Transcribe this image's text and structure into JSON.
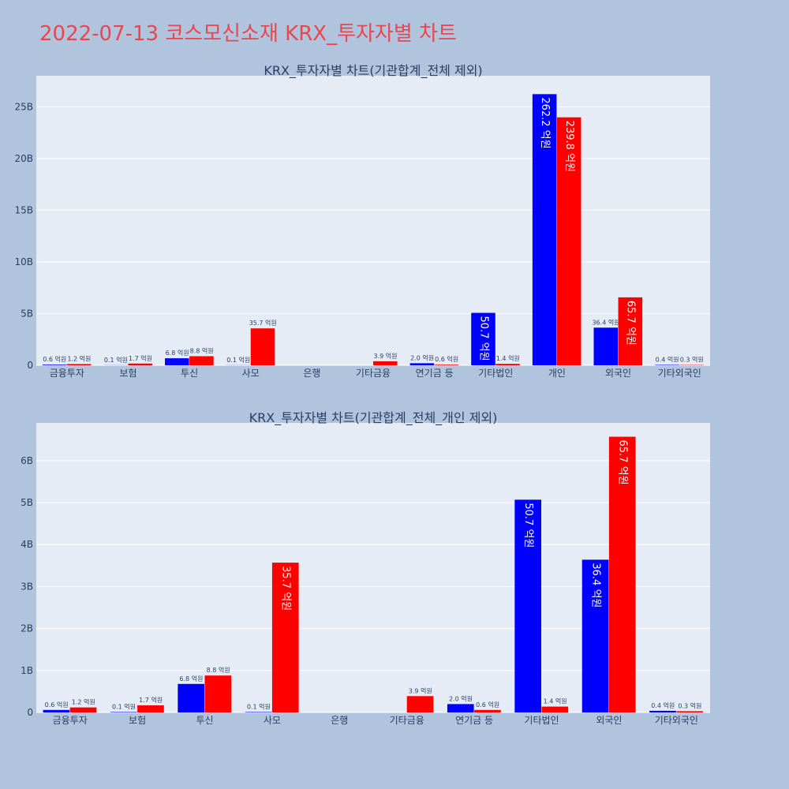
{
  "page": {
    "title": "2022-07-13 코스모신소재 KRX_투자자별 차트"
  },
  "colors": {
    "background": "#b0c4de",
    "plot_bg": "#e5ecf6",
    "grid": "#ffffff",
    "series_blue": "#0000ff",
    "series_red": "#ff0000",
    "title_color": "#e8474f",
    "axis_text": "#2a3f5f"
  },
  "chart_data": [
    {
      "type": "bar",
      "title": "KRX_투자자별 차트(기관합계_전체 제외)",
      "xlabel": "",
      "ylabel": "",
      "ylim": [
        0,
        28000000000
      ],
      "yticks": [
        0,
        5000000000,
        10000000000,
        15000000000,
        20000000000,
        25000000000
      ],
      "ytick_labels": [
        "0",
        "5B",
        "10B",
        "15B",
        "20B",
        "25B"
      ],
      "categories": [
        "금융투자",
        "보험",
        "투신",
        "사모",
        "은행",
        "기타금융",
        "연기금 등",
        "기타법인",
        "개인",
        "외국인",
        "기타외국인"
      ],
      "series": [
        {
          "color": "#0000ff",
          "values": [
            60000000,
            10000000,
            680000000,
            10000000,
            0,
            0,
            200000000,
            5070000000,
            26220000000,
            3640000000,
            40000000
          ],
          "labels": [
            "0.6 억원",
            "0.1 억원",
            "6.8 억원",
            "0.1 억원",
            "",
            "",
            "2.0 억원",
            "50.7 억원",
            "262.2 억원",
            "36.4 억원",
            "0.4 억원"
          ]
        },
        {
          "color": "#ff0000",
          "values": [
            120000000,
            170000000,
            880000000,
            3570000000,
            0,
            390000000,
            60000000,
            140000000,
            23980000000,
            6570000000,
            30000000
          ],
          "labels": [
            "1.2 억원",
            "1.7 억원",
            "8.8 억원",
            "35.7 억원",
            "",
            "3.9 억원",
            "0.6 억원",
            "1.4 억원",
            "239.8 억원",
            "65.7 억원",
            "0.3 억원"
          ]
        }
      ]
    },
    {
      "type": "bar",
      "title": "KRX_투자자별 차트(기관합계_전체_개인 제외)",
      "xlabel": "",
      "ylabel": "",
      "ylim": [
        0,
        6900000000
      ],
      "yticks": [
        0,
        1000000000,
        2000000000,
        3000000000,
        4000000000,
        5000000000,
        6000000000
      ],
      "ytick_labels": [
        "0",
        "1B",
        "2B",
        "3B",
        "4B",
        "5B",
        "6B"
      ],
      "categories": [
        "금융투자",
        "보험",
        "투신",
        "사모",
        "은행",
        "기타금융",
        "연기금 등",
        "기타법인",
        "외국인",
        "기타외국인"
      ],
      "series": [
        {
          "color": "#0000ff",
          "values": [
            60000000,
            10000000,
            680000000,
            10000000,
            0,
            0,
            200000000,
            5070000000,
            3640000000,
            40000000
          ],
          "labels": [
            "0.6 억원",
            "0.1 억원",
            "6.8 억원",
            "0.1 억원",
            "",
            "",
            "2.0 억원",
            "50.7 억원",
            "36.4 억원",
            "0.4 억원"
          ]
        },
        {
          "color": "#ff0000",
          "values": [
            120000000,
            170000000,
            880000000,
            3570000000,
            0,
            390000000,
            60000000,
            140000000,
            6570000000,
            30000000
          ],
          "labels": [
            "1.2 억원",
            "1.7 억원",
            "8.8 억원",
            "35.7 억원",
            "",
            "3.9 억원",
            "0.6 억원",
            "1.4 억원",
            "65.7 억원",
            "0.3 억원"
          ]
        }
      ]
    }
  ]
}
